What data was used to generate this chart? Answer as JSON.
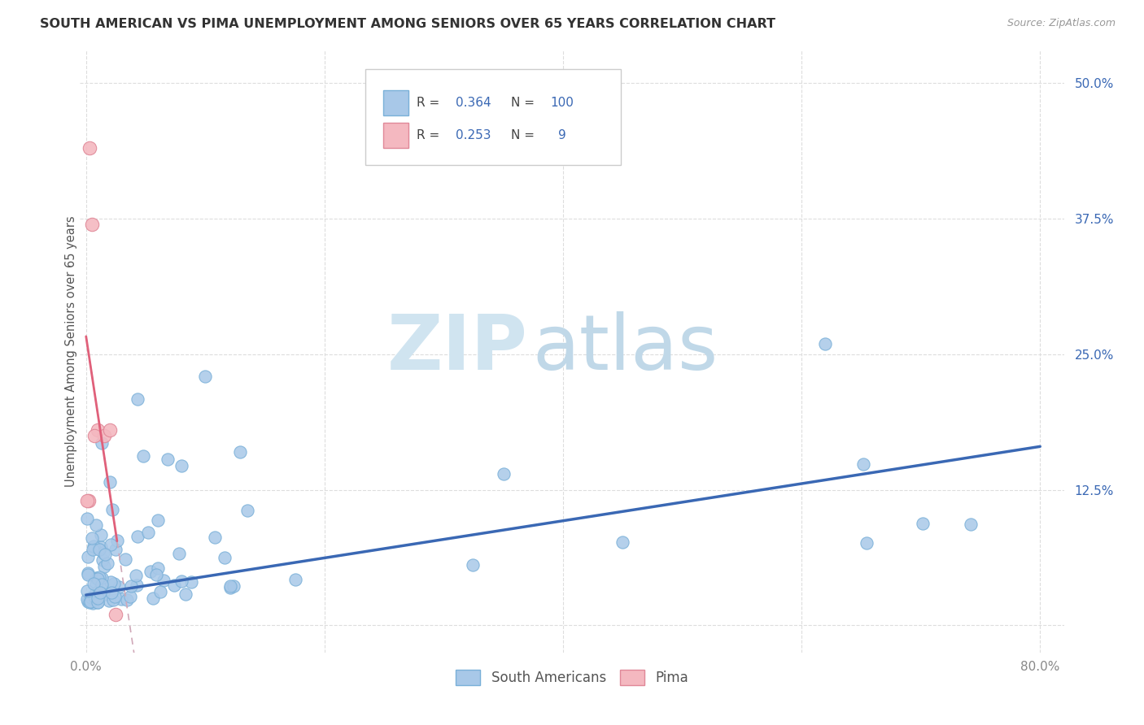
{
  "title": "SOUTH AMERICAN VS PIMA UNEMPLOYMENT AMONG SENIORS OVER 65 YEARS CORRELATION CHART",
  "source": "Source: ZipAtlas.com",
  "ylabel": "Unemployment Among Seniors over 65 years",
  "xlim": [
    -0.005,
    0.82
  ],
  "ylim": [
    -0.025,
    0.53
  ],
  "xticks": [
    0.0,
    0.2,
    0.4,
    0.6,
    0.8
  ],
  "xticklabels": [
    "0.0%",
    "",
    "",
    "",
    "80.0%"
  ],
  "ytick_positions": [
    0.0,
    0.125,
    0.25,
    0.375,
    0.5
  ],
  "yticklabels_right": [
    "",
    "12.5%",
    "25.0%",
    "37.5%",
    "50.0%"
  ],
  "sa_R": 0.364,
  "sa_N": 100,
  "pima_R": 0.253,
  "pima_N": 9,
  "south_american_color": "#a8c8e8",
  "south_american_edge_color": "#7ab0d8",
  "south_american_line_color": "#3a68b4",
  "pima_color": "#f4b8c0",
  "pima_edge_color": "#e08898",
  "pima_line_color": "#e0607a",
  "pima_dash_color": "#d0a8b8",
  "background_color": "#ffffff",
  "grid_color": "#dddddd",
  "watermark_zip_color": "#d0e4f0",
  "watermark_atlas_color": "#c0d8e8",
  "title_color": "#333333",
  "source_color": "#999999",
  "ylabel_color": "#555555",
  "tick_color": "#3a68b4",
  "xtick_color": "#888888"
}
